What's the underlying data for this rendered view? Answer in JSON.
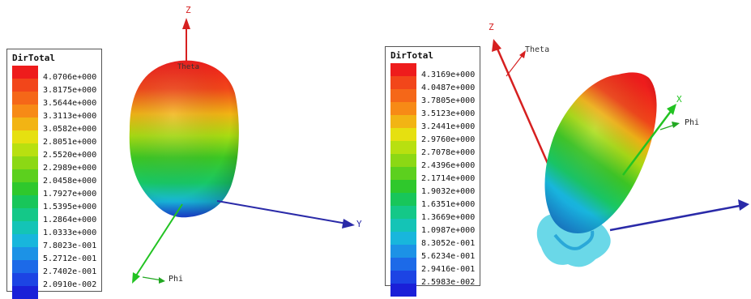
{
  "colors": {
    "axis_z": "#d62020",
    "axis_y": "#2a2aa8",
    "axis_x": "#22c322",
    "theta": "#d62020",
    "phi": "#22a822"
  },
  "left": {
    "legend": {
      "title": "DirTotal",
      "colors": [
        "#ee1c1c",
        "#f2461a",
        "#f56718",
        "#f78a16",
        "#f2b414",
        "#e6e010",
        "#b8e010",
        "#8cd814",
        "#5cd01e",
        "#2fc82c",
        "#18c65a",
        "#14c888",
        "#14c4b6",
        "#18b6dc",
        "#1c92e6",
        "#1c6ae8",
        "#1c44e4",
        "#1a20d8"
      ],
      "values": [
        "4.0706e+000",
        "3.8175e+000",
        "3.5644e+000",
        "3.3113e+000",
        "3.0582e+000",
        "2.8051e+000",
        "2.5520e+000",
        "2.2989e+000",
        "2.0458e+000",
        "1.7927e+000",
        "1.5395e+000",
        "1.2864e+000",
        "1.0333e+000",
        "7.8023e-001",
        "5.2712e-001",
        "2.7402e-001",
        "2.0910e-002"
      ]
    },
    "axes": {
      "z": "Z",
      "y": "Y",
      "theta": "Theta",
      "phi": "Phi"
    }
  },
  "right": {
    "legend": {
      "title": "DirTotal",
      "colors": [
        "#ee1c1c",
        "#f2461a",
        "#f56718",
        "#f78a16",
        "#f2b414",
        "#e6e010",
        "#b8e010",
        "#8cd814",
        "#5cd01e",
        "#2fc82c",
        "#18c65a",
        "#14c888",
        "#14c4b6",
        "#18b6dc",
        "#1c92e6",
        "#1c6ae8",
        "#1c44e4",
        "#1a20d8"
      ],
      "values": [
        "4.3169e+000",
        "4.0487e+000",
        "3.7805e+000",
        "3.5123e+000",
        "3.2441e+000",
        "2.9760e+000",
        "2.7078e+000",
        "2.4396e+000",
        "2.1714e+000",
        "1.9032e+000",
        "1.6351e+000",
        "1.3669e+000",
        "1.0987e+000",
        "8.3052e-001",
        "5.6234e-001",
        "2.9416e-001",
        "2.5983e-002"
      ]
    },
    "axes": {
      "z": "Z",
      "x": "X",
      "theta": "Theta",
      "phi": "Phi"
    }
  }
}
